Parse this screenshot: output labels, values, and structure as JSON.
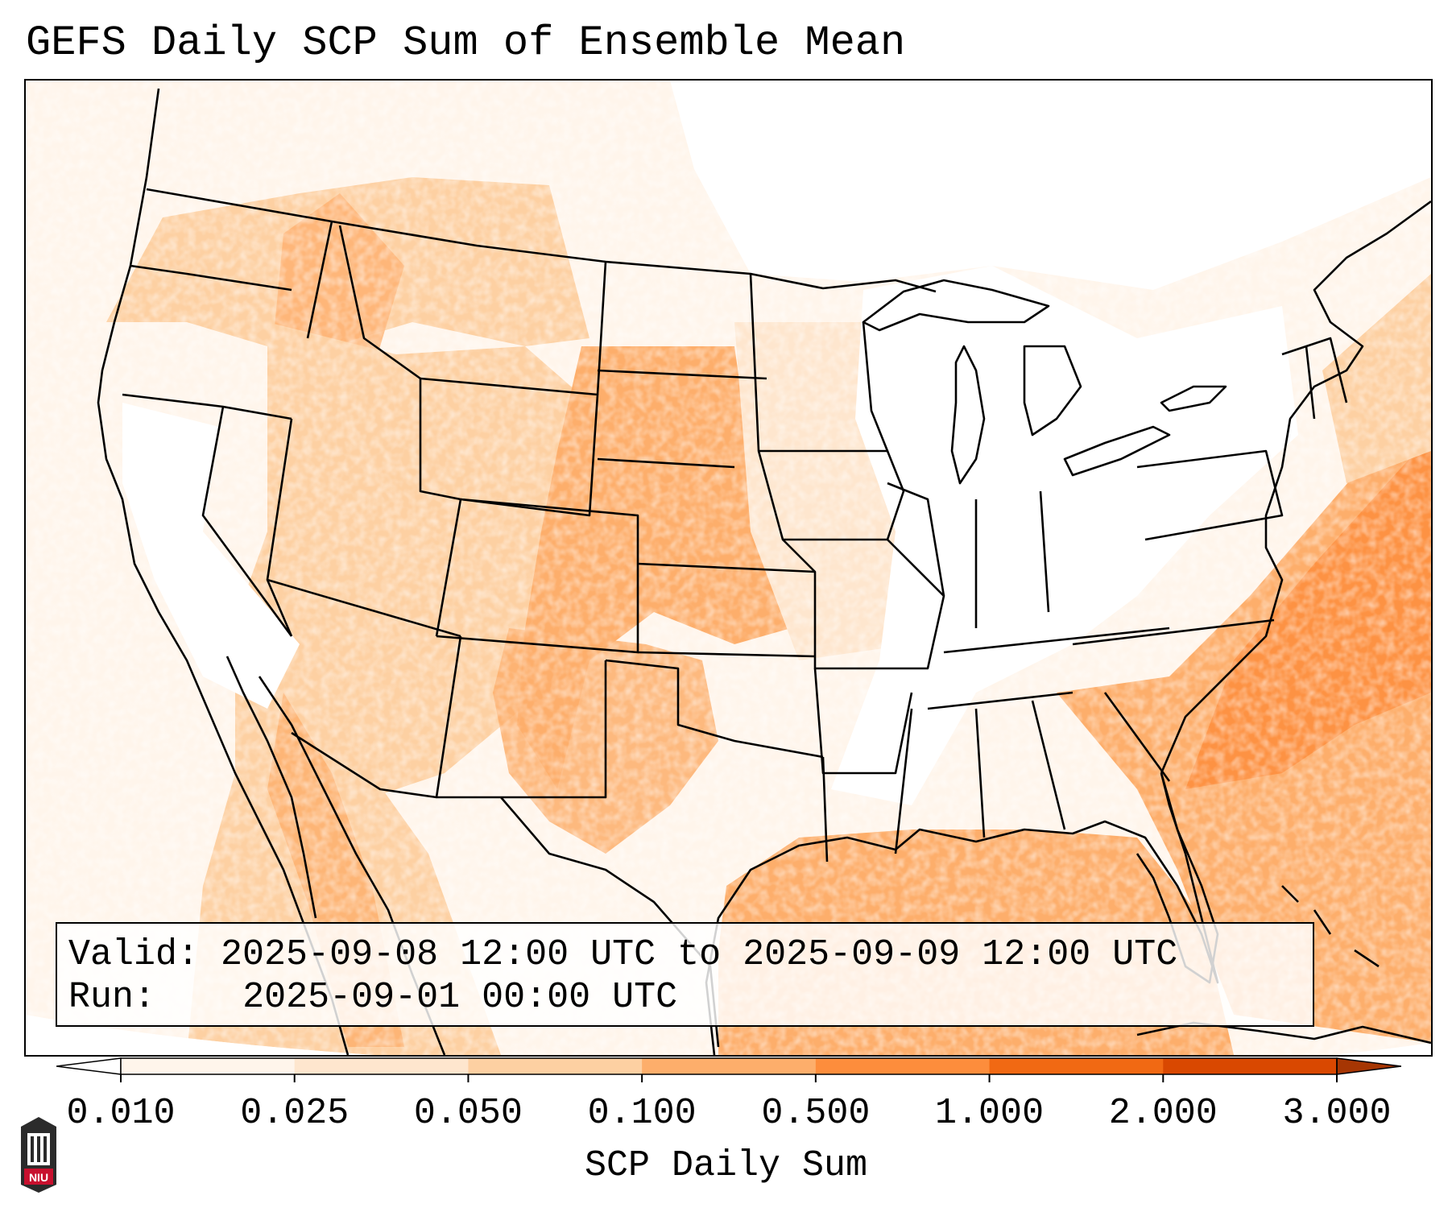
{
  "title": "GEFS Daily SCP Sum of Ensemble Mean",
  "info": {
    "valid_label": "Valid:",
    "valid_value": "2025-09-08 12:00 UTC to 2025-09-09 12:00 UTC",
    "run_label": "Run:",
    "run_value": "2025-09-01 00:00 UTC"
  },
  "colorbar": {
    "label": "SCP Daily Sum",
    "ticks": [
      "0.010",
      "0.025",
      "0.050",
      "0.100",
      "0.500",
      "1.000",
      "2.000",
      "3.000"
    ],
    "colors": [
      "#fff5eb",
      "#fee6ce",
      "#fdd0a2",
      "#fdae6b",
      "#fd8d3c",
      "#f16913",
      "#d94801",
      "#a63603"
    ]
  },
  "logo": {
    "text": "NIU",
    "accent": "#c8102e"
  }
}
